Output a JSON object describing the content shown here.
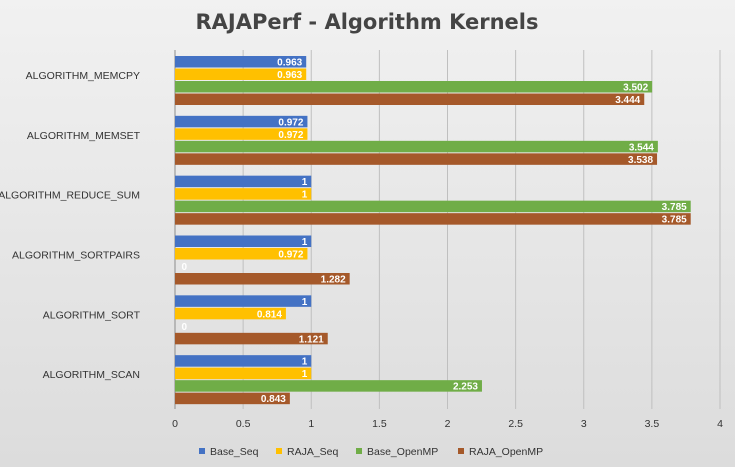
{
  "chart_data": {
    "type": "bar",
    "orientation": "horizontal",
    "title": "RAJAPerf - Algorithm Kernels",
    "xlabel": "",
    "ylabel": "",
    "xlim": [
      0,
      4
    ],
    "x_ticks": [
      "0",
      "0.5",
      "1",
      "1.5",
      "2",
      "2.5",
      "3",
      "3.5",
      "4"
    ],
    "x_tick_values": [
      0,
      0.5,
      1,
      1.5,
      2,
      2.5,
      3,
      3.5,
      4
    ],
    "grid": "vertical",
    "legend_position": "bottom",
    "categories": [
      "ALGORITHM_MEMCPY",
      "ALGORITHM_MEMSET",
      "ALGORITHM_REDUCE_SUM",
      "ALGORITHM_SORTPAIRS",
      "ALGORITHM_SORT",
      "ALGORITHM_SCAN"
    ],
    "series": [
      {
        "name": "Base_Seq",
        "color": "#4472c4",
        "values": [
          0.963,
          0.972,
          1,
          1,
          1,
          1
        ],
        "labels": [
          "0.963",
          "0.972",
          "1",
          "1",
          "1",
          "1"
        ]
      },
      {
        "name": "RAJA_Seq",
        "color": "#ffc000",
        "values": [
          0.963,
          0.972,
          1,
          0.972,
          0.814,
          1
        ],
        "labels": [
          "0.963",
          "0.972",
          "1",
          "0.972",
          "0.814",
          "1"
        ]
      },
      {
        "name": "Base_OpenMP",
        "color": "#70ad47",
        "values": [
          3.502,
          3.544,
          3.785,
          0,
          0,
          2.253
        ],
        "labels": [
          "3.502",
          "3.544",
          "3.785",
          "0",
          "0",
          "2.253"
        ]
      },
      {
        "name": "RAJA_OpenMP",
        "color": "#a5592a",
        "values": [
          3.444,
          3.538,
          3.785,
          1.282,
          1.121,
          0.843
        ],
        "labels": [
          "3.444",
          "3.538",
          "3.785",
          "1.282",
          "1.121",
          "0.843"
        ]
      }
    ]
  }
}
